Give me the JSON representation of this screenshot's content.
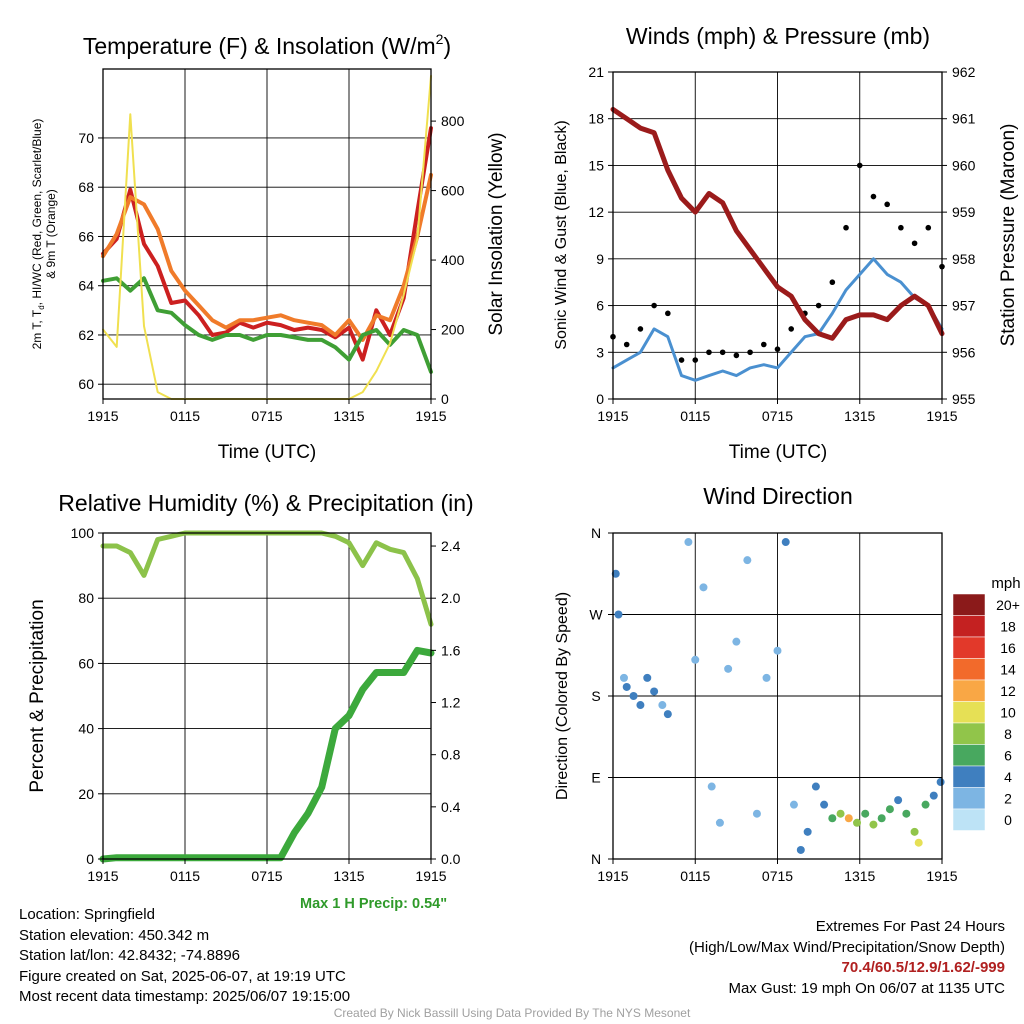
{
  "panels": {
    "temp": {
      "title": "Temperature (F) & Insolation (W/m",
      "title_sup": "2",
      "title_close": ")",
      "ylabel_left": "2m T, T_d, HI/WC (Red, Green, Scarlet/Blue) & 9m T (Orange)",
      "ylabel_right": "Solar Insolation (Yellow)",
      "xlabel": "Time (UTC)"
    },
    "wind": {
      "title": "Winds (mph) & Pressure (mb)",
      "ylabel_left": "Sonic Wind & Gust (Blue, Black)",
      "ylabel_right": "Station Pressure (Maroon)",
      "xlabel": "Time (UTC)"
    },
    "rh": {
      "title": "Relative Humidity (%) & Precipitation (in)",
      "ylabel_left": "Percent & Precipitation",
      "max_precip_label": "Max 1 H Precip: 0.54\""
    },
    "dir": {
      "title": "Wind Direction",
      "ylabel_left": "Direction (Colored By Speed)",
      "colorbar_title": "mph",
      "colorbar_labels": [
        "20+",
        "18",
        "16",
        "14",
        "12",
        "10",
        "8",
        "6",
        "4",
        "2",
        "0"
      ],
      "colorbar_colors": [
        "#8b1a1a",
        "#c42121",
        "#e2392a",
        "#f26a2b",
        "#f9a745",
        "#e6e055",
        "#91c54a",
        "#48a85f",
        "#3f7fbf",
        "#7db5e3",
        "#bde3f6"
      ]
    }
  },
  "info": {
    "location": "Location: Springfield",
    "elevation": "Station elevation: 450.342 m",
    "latlon": "Station lat/lon: 42.8432; -74.8896",
    "created": "Figure created on Sat, 2025-06-07, at 19:19 UTC",
    "recent": "Most recent data timestamp: 2025/06/07 19:15:00",
    "extremes_title": "Extremes For Past 24 Hours",
    "extremes_sub": "(High/Low/Max Wind/Precipitation/Snow Depth)",
    "extremes_values": "70.4/60.5/12.9/1.62/-999",
    "max_gust": "Max Gust: 19 mph On 06/07 at 1135 UTC",
    "credit": "Created By Nick Bassill Using Data Provided By The NYS Mesonet"
  },
  "chart_data": [
    {
      "type": "line",
      "title": "Temperature (F) & Insolation (W/m2)",
      "xlabel": "Time (UTC)",
      "ylabel": "2m T, Td, HI/WC (Red, Green, Scarlet/Blue) & 9m T (Orange)",
      "y2label": "Solar Insolation (Yellow)",
      "x_ticks": [
        "1915",
        "0115",
        "0715",
        "1315",
        "1915"
      ],
      "ylim": [
        59.4,
        72.8
      ],
      "y_ticks": [
        60,
        62,
        64,
        66,
        68,
        70
      ],
      "y2lim": [
        0,
        950
      ],
      "y2_ticks": [
        0,
        200,
        400,
        600,
        800
      ],
      "x": [
        0,
        1,
        2,
        3,
        4,
        5,
        6,
        7,
        8,
        9,
        10,
        11,
        12,
        13,
        14,
        15,
        16,
        17,
        18,
        19,
        20,
        21,
        22,
        23,
        24
      ],
      "series": [
        {
          "color": "#cc2020",
          "values": [
            65.3,
            65.9,
            67.9,
            65.7,
            64.8,
            63.3,
            63.4,
            62.8,
            62.0,
            62.1,
            62.5,
            62.3,
            62.5,
            62.4,
            62.2,
            62.3,
            62.2,
            61.9,
            62.3,
            61.0,
            63.0,
            62.0,
            63.5,
            67.0,
            70.4
          ]
        },
        {
          "color": "#f07b2a",
          "values": [
            65.2,
            66.1,
            67.6,
            67.3,
            66.3,
            64.6,
            63.8,
            63.2,
            62.6,
            62.3,
            62.6,
            62.6,
            62.7,
            62.8,
            62.6,
            62.5,
            62.4,
            62.0,
            62.6,
            61.8,
            62.8,
            62.6,
            64.0,
            66.0,
            68.5
          ]
        },
        {
          "color": "#3f9f35",
          "values": [
            64.2,
            64.3,
            63.8,
            64.3,
            63.0,
            62.9,
            62.4,
            62.0,
            61.8,
            62.0,
            62.0,
            61.8,
            62.0,
            62.0,
            61.9,
            61.8,
            61.8,
            61.5,
            61.0,
            62.0,
            62.2,
            61.6,
            62.2,
            62.0,
            60.5
          ]
        },
        {
          "color": "#f0e050",
          "values": [
            200,
            150,
            820,
            210,
            20,
            0,
            0,
            0,
            0,
            0,
            0,
            0,
            0,
            0,
            0,
            0,
            0,
            0,
            0,
            20,
            80,
            160,
            300,
            460,
            930
          ]
        }
      ]
    },
    {
      "type": "line",
      "title": "Winds (mph) & Pressure (mb)",
      "xlabel": "Time (UTC)",
      "ylabel": "Sonic Wind & Gust (Blue, Black)",
      "y2label": "Station Pressure (Maroon)",
      "x_ticks": [
        "1915",
        "0115",
        "0715",
        "1315",
        "1915"
      ],
      "ylim": [
        0,
        21
      ],
      "y_ticks": [
        0,
        3,
        6,
        9,
        12,
        15,
        18,
        21
      ],
      "y2lim": [
        955,
        962
      ],
      "y2_ticks": [
        955,
        956,
        957,
        958,
        959,
        960,
        961,
        962
      ],
      "x": [
        0,
        1,
        2,
        3,
        4,
        5,
        6,
        7,
        8,
        9,
        10,
        11,
        12,
        13,
        14,
        15,
        16,
        17,
        18,
        19,
        20,
        21,
        22,
        23,
        24
      ],
      "series": [
        {
          "color": "#4a90d0",
          "values": [
            2.0,
            2.5,
            3.0,
            4.5,
            4.0,
            1.5,
            1.2,
            1.5,
            1.8,
            1.5,
            2.0,
            2.2,
            2.0,
            3.0,
            4.0,
            4.2,
            5.5,
            7.0,
            8.0,
            9.0,
            8.0,
            7.5,
            6.5,
            6.0,
            4.5
          ]
        },
        {
          "color": "#000000",
          "values": [
            4.0,
            3.5,
            4.5,
            6.0,
            5.5,
            2.5,
            2.5,
            3.0,
            3.0,
            2.8,
            3.0,
            3.5,
            3.2,
            4.5,
            5.5,
            6.0,
            7.5,
            11.0,
            15.0,
            13.0,
            12.5,
            11.0,
            10.0,
            11.0,
            8.5
          ]
        },
        {
          "color": "#9b1b1b",
          "values": [
            961.2,
            961.0,
            960.8,
            960.7,
            959.9,
            959.3,
            959.0,
            959.4,
            959.2,
            958.6,
            958.2,
            957.8,
            957.4,
            957.2,
            956.7,
            956.4,
            956.3,
            956.7,
            956.8,
            956.8,
            956.7,
            957.0,
            957.2,
            957.0,
            956.4
          ]
        }
      ]
    },
    {
      "type": "line",
      "title": "Relative Humidity (%) & Precipitation (in)",
      "ylabel": "Percent & Precipitation",
      "x_ticks": [
        "1915",
        "0115",
        "0715",
        "1315",
        "1915"
      ],
      "ylim": [
        0,
        100
      ],
      "y_ticks": [
        0,
        20,
        40,
        60,
        80,
        100
      ],
      "y2lim": [
        0,
        2.5
      ],
      "y2_ticks": [
        0.0,
        0.4,
        0.8,
        1.2,
        1.6,
        2.0,
        2.4
      ],
      "x": [
        0,
        1,
        2,
        3,
        4,
        5,
        6,
        7,
        8,
        9,
        10,
        11,
        12,
        13,
        14,
        15,
        16,
        17,
        18,
        19,
        20,
        21,
        22,
        23,
        24
      ],
      "series": [
        {
          "color": "#8cc24a",
          "values": [
            96,
            96,
            94,
            87,
            98,
            99,
            100,
            100,
            100,
            100,
            100,
            100,
            100,
            100,
            100,
            100,
            100,
            99,
            97,
            90,
            97,
            95,
            94,
            86,
            72
          ]
        },
        {
          "color": "#3ca93c",
          "values": [
            0.0,
            0.01,
            0.01,
            0.01,
            0.01,
            0.01,
            0.01,
            0.01,
            0.01,
            0.01,
            0.01,
            0.01,
            0.01,
            0.01,
            0.2,
            0.35,
            0.55,
            1.0,
            1.1,
            1.3,
            1.43,
            1.43,
            1.43,
            1.6,
            1.58
          ]
        }
      ]
    },
    {
      "type": "scatter",
      "title": "Wind Direction",
      "ylabel": "Direction (Colored By Speed)",
      "x_ticks": [
        "1915",
        "0115",
        "0715",
        "1315",
        "1915"
      ],
      "y_ticks": [
        "N",
        "E",
        "S",
        "W",
        "N"
      ],
      "ylim": [
        0,
        360
      ],
      "colorbar": {
        "label": "mph",
        "levels": [
          "0",
          "2",
          "4",
          "6",
          "8",
          "10",
          "12",
          "14",
          "16",
          "18",
          "20+"
        ]
      },
      "points": [
        {
          "x": 0.2,
          "y": 315,
          "s": 3
        },
        {
          "x": 0.4,
          "y": 270,
          "s": 3
        },
        {
          "x": 0.8,
          "y": 200,
          "s": 2
        },
        {
          "x": 1.0,
          "y": 190,
          "s": 3
        },
        {
          "x": 1.5,
          "y": 180,
          "s": 4
        },
        {
          "x": 2.0,
          "y": 170,
          "s": 4
        },
        {
          "x": 2.5,
          "y": 200,
          "s": 3
        },
        {
          "x": 3.0,
          "y": 185,
          "s": 4
        },
        {
          "x": 3.6,
          "y": 170,
          "s": 2
        },
        {
          "x": 4.0,
          "y": 160,
          "s": 3
        },
        {
          "x": 5.5,
          "y": 350,
          "s": 1
        },
        {
          "x": 6.0,
          "y": 220,
          "s": 1
        },
        {
          "x": 6.6,
          "y": 300,
          "s": 1
        },
        {
          "x": 7.2,
          "y": 80,
          "s": 2
        },
        {
          "x": 7.8,
          "y": 40,
          "s": 1
        },
        {
          "x": 8.4,
          "y": 210,
          "s": 2
        },
        {
          "x": 9.0,
          "y": 240,
          "s": 1
        },
        {
          "x": 9.8,
          "y": 330,
          "s": 1
        },
        {
          "x": 10.5,
          "y": 50,
          "s": 2
        },
        {
          "x": 11.2,
          "y": 200,
          "s": 2
        },
        {
          "x": 12.0,
          "y": 230,
          "s": 2
        },
        {
          "x": 12.6,
          "y": 350,
          "s": 3
        },
        {
          "x": 13.2,
          "y": 60,
          "s": 2
        },
        {
          "x": 13.7,
          "y": 10,
          "s": 3
        },
        {
          "x": 14.2,
          "y": 30,
          "s": 4
        },
        {
          "x": 14.8,
          "y": 80,
          "s": 3
        },
        {
          "x": 15.4,
          "y": 60,
          "s": 4
        },
        {
          "x": 16.0,
          "y": 45,
          "s": 6
        },
        {
          "x": 16.6,
          "y": 50,
          "s": 8
        },
        {
          "x": 17.2,
          "y": 45,
          "s": 11
        },
        {
          "x": 17.8,
          "y": 40,
          "s": 8
        },
        {
          "x": 18.4,
          "y": 50,
          "s": 6
        },
        {
          "x": 19.0,
          "y": 38,
          "s": 7
        },
        {
          "x": 19.6,
          "y": 45,
          "s": 6
        },
        {
          "x": 20.2,
          "y": 55,
          "s": 5
        },
        {
          "x": 20.8,
          "y": 65,
          "s": 4
        },
        {
          "x": 21.4,
          "y": 50,
          "s": 6
        },
        {
          "x": 22.0,
          "y": 30,
          "s": 8
        },
        {
          "x": 22.3,
          "y": 18,
          "s": 10
        },
        {
          "x": 22.8,
          "y": 60,
          "s": 5
        },
        {
          "x": 23.4,
          "y": 70,
          "s": 4
        },
        {
          "x": 23.9,
          "y": 85,
          "s": 3
        }
      ]
    }
  ]
}
